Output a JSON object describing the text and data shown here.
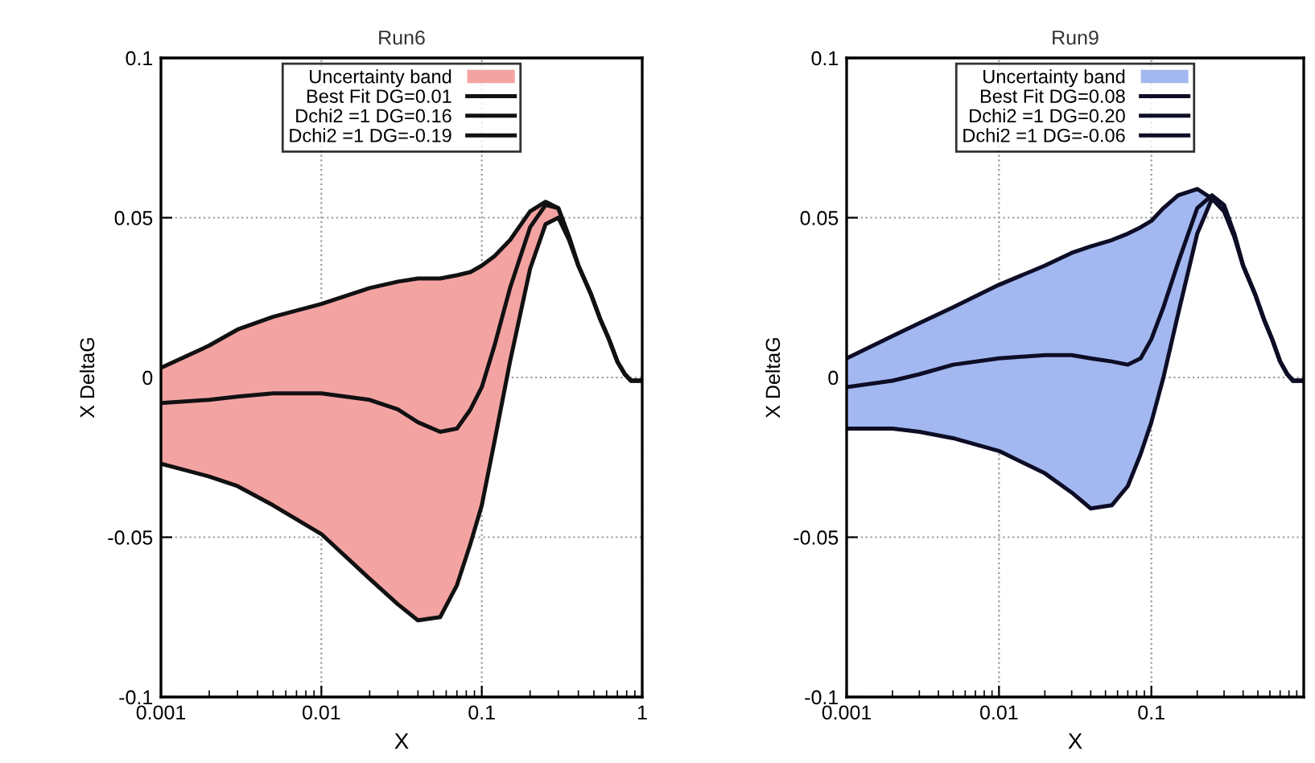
{
  "chart_data": [
    {
      "type": "line",
      "title": "Run6",
      "xlabel": "X",
      "ylabel": "X DeltaG",
      "log": "x",
      "grid": true,
      "legend": "top",
      "xlim": [
        0.001,
        1
      ],
      "ylim": [
        -0.1,
        0.1
      ],
      "xticks": [
        0.001,
        0.01,
        0.1,
        1
      ],
      "yticks": [
        -0.1,
        -0.05,
        0,
        0.05,
        0.1
      ],
      "x": [
        0.001,
        0.002,
        0.003,
        0.005,
        0.01,
        0.02,
        0.03,
        0.04,
        0.055,
        0.07,
        0.085,
        0.1,
        0.12,
        0.15,
        0.2,
        0.25,
        0.3,
        0.35,
        0.4,
        0.48,
        0.55,
        0.62,
        0.7,
        0.78,
        0.85,
        1
      ],
      "series": [
        {
          "name": "Uncertainty band",
          "type": "area",
          "color": "#f4a3a3",
          "values": [
            null,
            null,
            null,
            null,
            null,
            null,
            null,
            null,
            null,
            null,
            null,
            null,
            null,
            null,
            null,
            null,
            null,
            null,
            null,
            null,
            null,
            null,
            null,
            null,
            null,
            null
          ],
          "upper": [
            0.003,
            0.01,
            0.015,
            0.019,
            0.023,
            0.028,
            0.03,
            0.031,
            0.031,
            0.032,
            0.033,
            0.035,
            0.038,
            0.043,
            0.052,
            0.055,
            0.053,
            0.044,
            0.035,
            0.026,
            0.018,
            0.012,
            0.005,
            0.001,
            -0.001,
            -0.001
          ],
          "lower": [
            -0.027,
            -0.031,
            -0.034,
            -0.04,
            -0.049,
            -0.063,
            -0.071,
            -0.076,
            -0.075,
            -0.065,
            -0.052,
            -0.04,
            -0.02,
            0.005,
            0.034,
            0.048,
            0.05,
            0.043,
            0.035,
            0.026,
            0.018,
            0.012,
            0.005,
            0.001,
            -0.001,
            -0.001
          ]
        },
        {
          "name": "Best Fit DG=0.01",
          "type": "line",
          "color": "#111111",
          "values": [
            -0.008,
            -0.007,
            -0.006,
            -0.005,
            -0.005,
            -0.007,
            -0.01,
            -0.014,
            -0.017,
            -0.016,
            -0.01,
            -0.003,
            0.01,
            0.028,
            0.047,
            0.054,
            0.053,
            0.044,
            0.035,
            0.026,
            0.018,
            0.012,
            0.005,
            0.001,
            -0.001,
            -0.001
          ]
        },
        {
          "name": "Dchi2 =1 DG=0.16",
          "type": "line",
          "color": "#111111",
          "values": [
            0.003,
            0.01,
            0.015,
            0.019,
            0.023,
            0.028,
            0.03,
            0.031,
            0.031,
            0.032,
            0.033,
            0.035,
            0.038,
            0.043,
            0.052,
            0.055,
            0.053,
            0.044,
            0.035,
            0.026,
            0.018,
            0.012,
            0.005,
            0.001,
            -0.001,
            -0.001
          ]
        },
        {
          "name": "Dchi2 =1 DG=-0.19",
          "type": "line",
          "color": "#111111",
          "values": [
            -0.027,
            -0.031,
            -0.034,
            -0.04,
            -0.049,
            -0.063,
            -0.071,
            -0.076,
            -0.075,
            -0.065,
            -0.052,
            -0.04,
            -0.02,
            0.005,
            0.034,
            0.048,
            0.05,
            0.043,
            0.035,
            0.026,
            0.018,
            0.012,
            0.005,
            0.001,
            -0.001,
            -0.001
          ]
        }
      ]
    },
    {
      "type": "line",
      "title": "Run9",
      "xlabel": "X",
      "ylabel": "X DeltaG",
      "log": "x",
      "grid": true,
      "legend": "top",
      "xlim": [
        0.001,
        1
      ],
      "ylim": [
        -0.1,
        0.1
      ],
      "xticks": [
        0.001,
        0.01,
        0.1
      ],
      "yticks": [
        -0.1,
        -0.05,
        0,
        0.05,
        0.1
      ],
      "x": [
        0.001,
        0.002,
        0.003,
        0.005,
        0.01,
        0.02,
        0.03,
        0.04,
        0.055,
        0.07,
        0.085,
        0.1,
        0.12,
        0.15,
        0.2,
        0.25,
        0.3,
        0.35,
        0.4,
        0.48,
        0.55,
        0.62,
        0.7,
        0.78,
        0.85,
        1
      ],
      "series": [
        {
          "name": "Uncertainty band",
          "type": "area",
          "color": "#a3b8f0",
          "values": [
            null,
            null,
            null,
            null,
            null,
            null,
            null,
            null,
            null,
            null,
            null,
            null,
            null,
            null,
            null,
            null,
            null,
            null,
            null,
            null,
            null,
            null,
            null,
            null,
            null,
            null
          ],
          "upper": [
            0.006,
            0.013,
            0.017,
            0.022,
            0.029,
            0.035,
            0.039,
            0.041,
            0.043,
            0.045,
            0.047,
            0.049,
            0.053,
            0.057,
            0.059,
            0.056,
            0.052,
            0.044,
            0.035,
            0.026,
            0.018,
            0.012,
            0.005,
            0.001,
            -0.001,
            -0.001
          ],
          "lower": [
            -0.016,
            -0.016,
            -0.017,
            -0.019,
            -0.023,
            -0.03,
            -0.036,
            -0.041,
            -0.04,
            -0.034,
            -0.024,
            -0.014,
            0.0,
            0.02,
            0.045,
            0.056,
            0.052,
            0.045,
            0.035,
            0.026,
            0.018,
            0.012,
            0.005,
            0.001,
            -0.001,
            -0.001
          ]
        },
        {
          "name": "Best Fit DG=0.08",
          "type": "line",
          "color": "#0d0d26",
          "values": [
            -0.003,
            -0.001,
            0.001,
            0.004,
            0.006,
            0.007,
            0.007,
            0.006,
            0.005,
            0.004,
            0.006,
            0.012,
            0.022,
            0.036,
            0.053,
            0.057,
            0.054,
            0.045,
            0.035,
            0.026,
            0.018,
            0.012,
            0.005,
            0.001,
            -0.001,
            -0.001
          ]
        },
        {
          "name": "Dchi2 =1 DG=0.20",
          "type": "line",
          "color": "#0d0d26",
          "values": [
            0.006,
            0.013,
            0.017,
            0.022,
            0.029,
            0.035,
            0.039,
            0.041,
            0.043,
            0.045,
            0.047,
            0.049,
            0.053,
            0.057,
            0.059,
            0.056,
            0.052,
            0.044,
            0.035,
            0.026,
            0.018,
            0.012,
            0.005,
            0.001,
            -0.001,
            -0.001
          ]
        },
        {
          "name": "Dchi2 =1 DG=-0.06",
          "type": "line",
          "color": "#0d0d26",
          "values": [
            -0.016,
            -0.016,
            -0.017,
            -0.019,
            -0.023,
            -0.03,
            -0.036,
            -0.041,
            -0.04,
            -0.034,
            -0.024,
            -0.014,
            0.0,
            0.02,
            0.045,
            0.056,
            0.052,
            0.045,
            0.035,
            0.026,
            0.018,
            0.012,
            0.005,
            0.001,
            -0.001,
            -0.001
          ]
        }
      ]
    }
  ]
}
